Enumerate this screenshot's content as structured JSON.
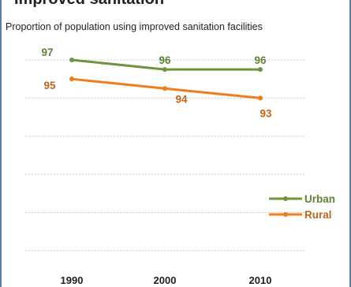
{
  "header": {
    "title_partial": "Improved sanitation",
    "subtitle": "Proportion of population using improved sanitation facilities"
  },
  "chart_data": {
    "type": "line",
    "title": "",
    "subtitle": "Proportion of population using improved sanitation facilities",
    "xlabel": "",
    "ylabel": "",
    "x": [
      "1990",
      "2000",
      "2010"
    ],
    "ylim": [
      75,
      97
    ],
    "grid": true,
    "legend_position": "right",
    "series": [
      {
        "name": "Urban",
        "values": [
          97,
          96,
          96
        ],
        "color": "#6f9440",
        "label_color": "#5e8235"
      },
      {
        "name": "Rural",
        "values": [
          95,
          94,
          93
        ],
        "color": "#f07d1a",
        "label_color": "#c0651a"
      }
    ]
  }
}
